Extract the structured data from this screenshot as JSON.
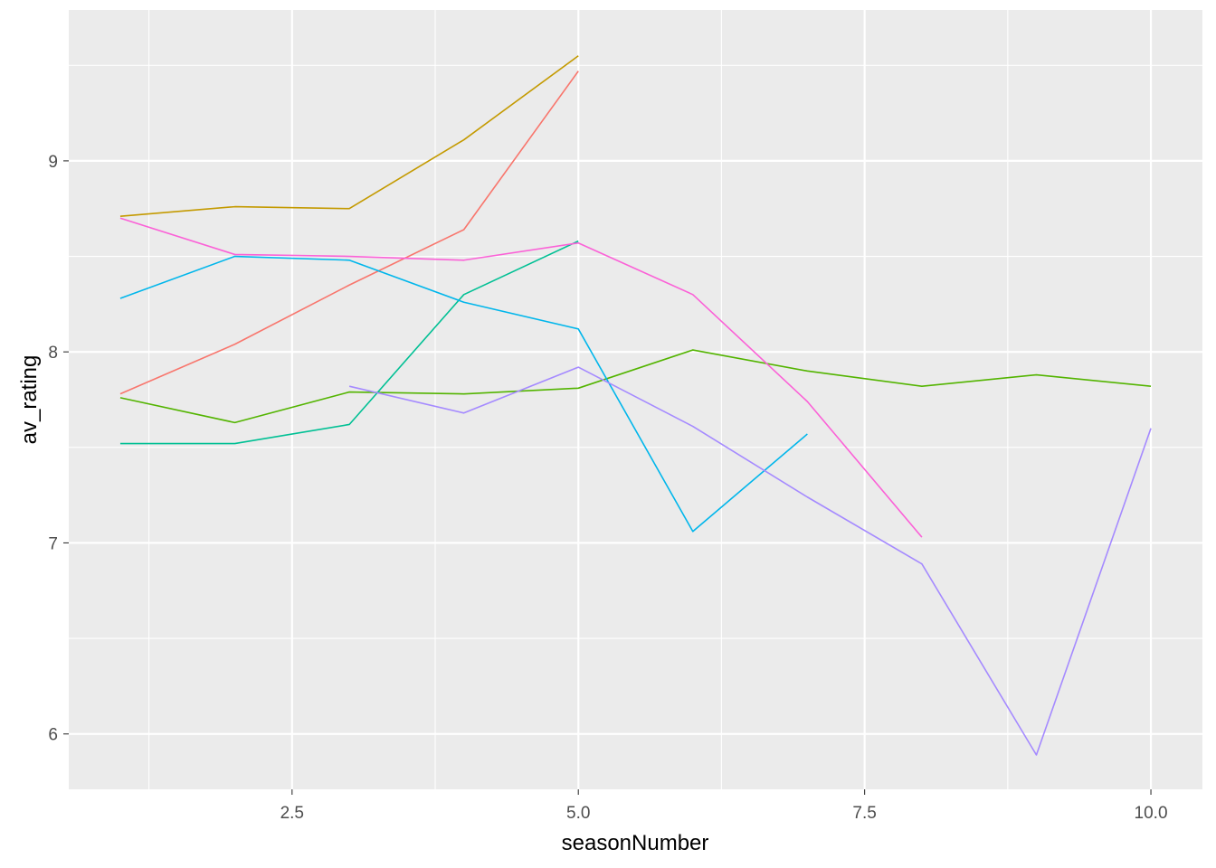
{
  "chart_data": {
    "type": "line",
    "title": "",
    "xlabel": "seasonNumber",
    "ylabel": "av_rating",
    "xlim": [
      0.55,
      10.45
    ],
    "ylim": [
      5.71,
      9.79
    ],
    "x_ticks": [
      2.5,
      5.0,
      7.5,
      10.0
    ],
    "x_tick_labels": [
      "2.5",
      "5.0",
      "7.5",
      "10.0"
    ],
    "x_minor_ticks": [
      1.25,
      3.75,
      6.25,
      8.75
    ],
    "y_ticks": [
      6,
      7,
      8,
      9
    ],
    "y_tick_labels": [
      "6",
      "7",
      "8",
      "9"
    ],
    "y_minor_ticks": [
      6.5,
      7.5,
      8.5,
      9.5
    ],
    "grid": true,
    "legend": "none",
    "panel_background": "#EBEBEB",
    "grid_color": "#FFFFFF",
    "series": [
      {
        "color": "#F8766D",
        "x": [
          1,
          2,
          3,
          4,
          5
        ],
        "y": [
          7.78,
          8.04,
          8.35,
          8.64,
          9.47
        ]
      },
      {
        "color": "#C49A00",
        "x": [
          1,
          2,
          3,
          4,
          5
        ],
        "y": [
          8.71,
          8.76,
          8.75,
          9.11,
          9.55
        ]
      },
      {
        "color": "#53B400",
        "x": [
          1,
          2,
          3,
          4,
          5,
          6,
          7,
          8,
          9,
          10
        ],
        "y": [
          7.76,
          7.63,
          7.79,
          7.78,
          7.81,
          8.01,
          7.9,
          7.82,
          7.88,
          7.82
        ]
      },
      {
        "color": "#00C094",
        "x": [
          1,
          2,
          3,
          4,
          5
        ],
        "y": [
          7.52,
          7.52,
          7.62,
          8.3,
          8.58
        ]
      },
      {
        "color": "#00B6EB",
        "x": [
          1,
          2,
          3,
          4,
          5,
          6,
          7
        ],
        "y": [
          8.28,
          8.5,
          8.48,
          8.26,
          8.12,
          7.06,
          7.57
        ]
      },
      {
        "color": "#A58AFF",
        "x": [
          3,
          4,
          5,
          6,
          7,
          8,
          9,
          10
        ],
        "y": [
          7.82,
          7.68,
          7.92,
          7.61,
          7.24,
          6.89,
          5.89,
          7.6
        ]
      },
      {
        "color": "#FB61D7",
        "x": [
          1,
          2,
          3,
          4,
          5,
          6,
          7,
          8
        ],
        "y": [
          8.7,
          8.51,
          8.5,
          8.48,
          8.57,
          8.3,
          7.74,
          7.03
        ]
      }
    ]
  }
}
